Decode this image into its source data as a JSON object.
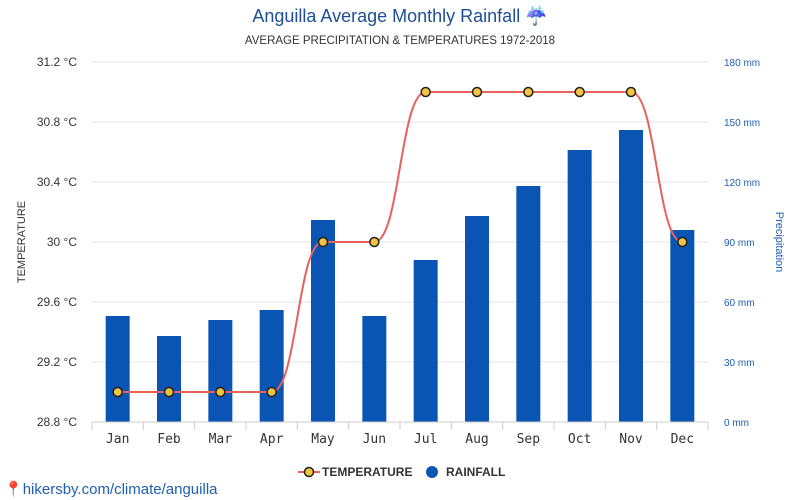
{
  "header": {
    "title": "Anguilla Average Monthly Rainfall",
    "title_icon": "umbrella-rain-icon",
    "subtitle": "AVERAGE PRECIPITATION & TEMPERATURES 1972-2018"
  },
  "footer": {
    "pin_icon": "location-pin-icon",
    "url_text": "hikersby.com/climate/anguilla"
  },
  "legend": {
    "temperature_label": "TEMPERATURE",
    "rainfall_label": "RAINFALL"
  },
  "colors": {
    "bar": "#0a55b4",
    "line": "#e8615d",
    "marker_fill": "#f5c342",
    "marker_stroke": "#222222",
    "title": "#1f4e94",
    "right_axis": "#1e5fb4"
  },
  "chart_data": {
    "type": "bar",
    "categories": [
      "Jan",
      "Feb",
      "Mar",
      "Apr",
      "May",
      "Jun",
      "Jul",
      "Aug",
      "Sep",
      "Oct",
      "Nov",
      "Dec"
    ],
    "series": [
      {
        "name": "RAINFALL",
        "type": "bar",
        "axis": "right",
        "values": [
          53,
          43,
          51,
          56,
          101,
          53,
          81,
          103,
          118,
          136,
          146,
          96
        ]
      },
      {
        "name": "TEMPERATURE",
        "type": "line",
        "axis": "left",
        "values": [
          29,
          29,
          29,
          29,
          30,
          30,
          31,
          31,
          31,
          31,
          31,
          30
        ]
      }
    ],
    "left_axis": {
      "label": "TEMPERATURE",
      "ylim": [
        28.8,
        31.2
      ],
      "ticks": [
        28.8,
        29.2,
        29.6,
        30,
        30.4,
        30.8,
        31.2
      ],
      "tick_labels": [
        "28.8 °C",
        "29.2 °C",
        "29.6 °C",
        "30 °C",
        "30.4 °C",
        "30.8 °C",
        "31.2 °C"
      ]
    },
    "right_axis": {
      "label": "Precipitation",
      "ylim": [
        0,
        180
      ],
      "ticks": [
        0,
        30,
        60,
        90,
        120,
        150,
        180
      ],
      "tick_labels": [
        "0 mm",
        "30 mm",
        "60 mm",
        "90 mm",
        "120 mm",
        "150 mm",
        "180 mm"
      ]
    },
    "grid": true,
    "legend_position": "bottom-center"
  }
}
